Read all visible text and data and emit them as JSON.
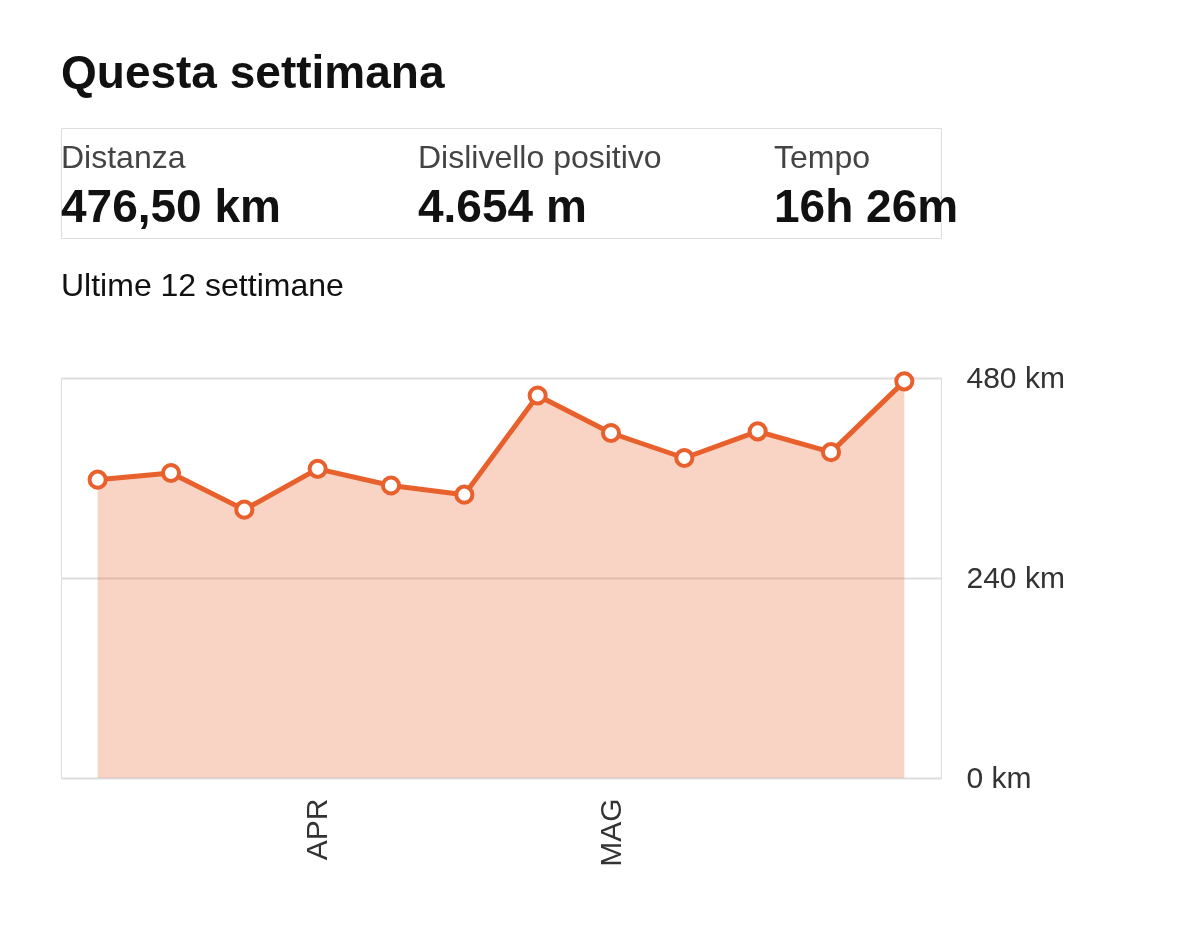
{
  "chart_data": {
    "type": "area",
    "title": "Questa settimana",
    "subtitle": "Ultime 12 settimane",
    "annotations": [
      "Distanza",
      "476,50 km",
      "Dislivello positivo",
      "4.654 m",
      "Tempo",
      "16h 26m"
    ],
    "categories": [
      null,
      null,
      null,
      "APR",
      null,
      null,
      null,
      "MAG",
      null,
      null,
      null,
      null
    ],
    "series": [
      {
        "color": "#e8602c",
        "values": [
          358,
          366,
          322,
          371,
          351,
          340,
          459,
          414,
          384,
          416,
          391,
          476
        ]
      }
    ],
    "ylim": [
      0,
      480
    ],
    "yticks": [
      {
        "value": 0,
        "label": "0 km"
      },
      {
        "value": 240,
        "label": "240 km"
      },
      {
        "value": 480,
        "label": "480 km"
      }
    ],
    "grid": "y",
    "marker": "circle",
    "line_style": "solid",
    "legend": false
  }
}
